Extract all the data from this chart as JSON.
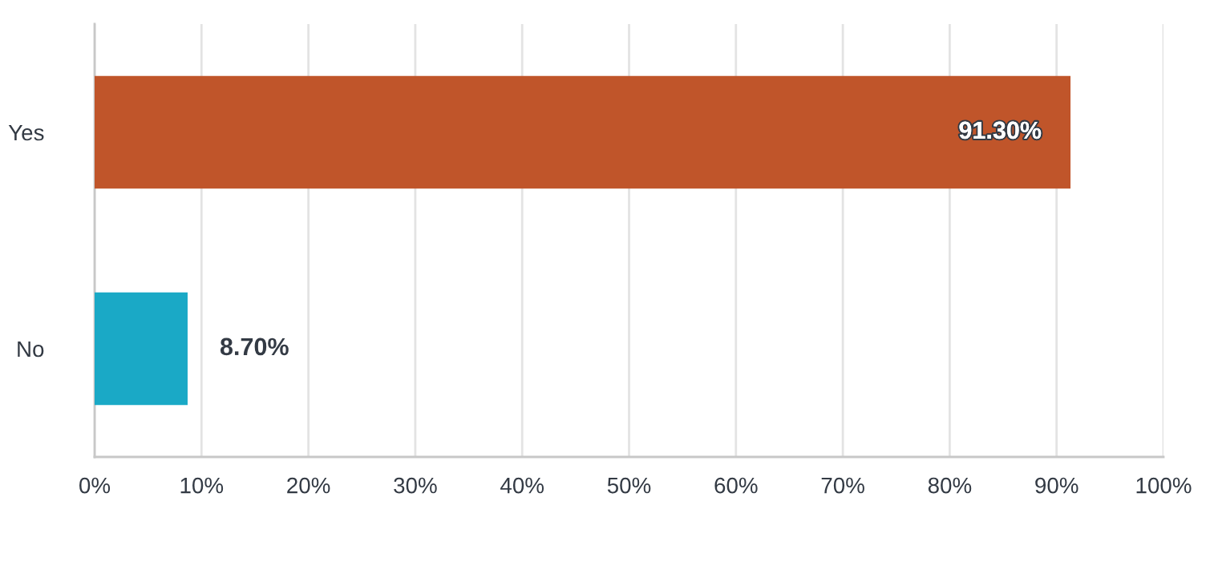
{
  "chart_data": {
    "type": "bar",
    "orientation": "horizontal",
    "categories": [
      "Yes",
      "No"
    ],
    "values": [
      91.3,
      8.7
    ],
    "colors": [
      "#c0552a",
      "#1aa9c6"
    ],
    "value_labels": [
      "91.30%",
      "8.70%"
    ],
    "xlim": [
      0,
      100
    ],
    "xticks": [
      {
        "value": 0,
        "label": "0%"
      },
      {
        "value": 10,
        "label": "10%"
      },
      {
        "value": 20,
        "label": "20%"
      },
      {
        "value": 30,
        "label": "30%"
      },
      {
        "value": 40,
        "label": "40%"
      },
      {
        "value": 50,
        "label": "50%"
      },
      {
        "value": 60,
        "label": "60%"
      },
      {
        "value": 70,
        "label": "70%"
      },
      {
        "value": 80,
        "label": "80%"
      },
      {
        "value": 90,
        "label": "90%"
      },
      {
        "value": 100,
        "label": "100%"
      }
    ],
    "grid": "x",
    "legend": false
  }
}
